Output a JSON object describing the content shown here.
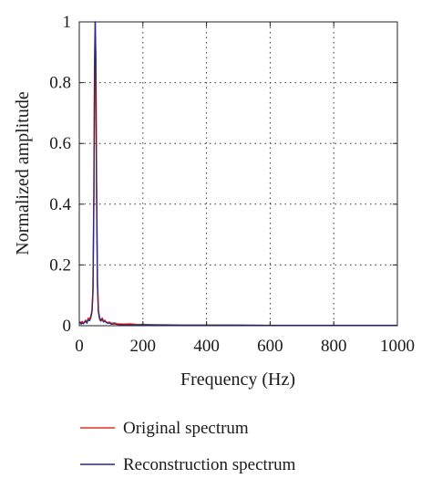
{
  "chart_data": {
    "type": "line",
    "xlabel": "Frequency (Hz)",
    "ylabel": "Normalized amplitude",
    "xlim": [
      0,
      1000
    ],
    "ylim": [
      0,
      1
    ],
    "x_ticks": [
      0,
      200,
      400,
      600,
      800,
      1000
    ],
    "y_ticks": [
      0,
      0.2,
      0.4,
      0.6,
      0.8,
      1
    ],
    "x_tick_labels": [
      "0",
      "200",
      "400",
      "600",
      "800",
      "1000"
    ],
    "y_tick_labels": [
      "0",
      "0.2",
      "0.4",
      "0.6",
      "0.8",
      "1"
    ],
    "grid": true,
    "legend_position": "bottom",
    "series": [
      {
        "name": "Original spectrum",
        "color": "#e0302a",
        "x": [
          0,
          3,
          6,
          9,
          12,
          16,
          20,
          24,
          28,
          32,
          36,
          40,
          43,
          46,
          48,
          50,
          52,
          54,
          57,
          60,
          64,
          68,
          72,
          76,
          80,
          85,
          90,
          95,
          100,
          110,
          120,
          140,
          160,
          180,
          200,
          240,
          280,
          320,
          400,
          500,
          600,
          700,
          800,
          900,
          1000
        ],
        "y": [
          0.01,
          0.012,
          0.006,
          0.014,
          0.008,
          0.012,
          0.018,
          0.01,
          0.025,
          0.02,
          0.03,
          0.05,
          0.12,
          0.45,
          0.85,
          1.0,
          0.88,
          0.5,
          0.15,
          0.05,
          0.025,
          0.018,
          0.025,
          0.015,
          0.018,
          0.012,
          0.01,
          0.012,
          0.008,
          0.009,
          0.006,
          0.005,
          0.006,
          0.004,
          0.004,
          0.003,
          0.003,
          0.002,
          0.002,
          0.002,
          0.001,
          0.001,
          0.001,
          0.001,
          0.001
        ]
      },
      {
        "name": "Reconstruction spectrum",
        "color": "#2a2a7a",
        "x": [
          0,
          3,
          6,
          9,
          12,
          16,
          20,
          24,
          28,
          32,
          36,
          40,
          43,
          46,
          48,
          50,
          52,
          54,
          57,
          60,
          64,
          68,
          72,
          76,
          80,
          85,
          90,
          95,
          100,
          110,
          120,
          140,
          160,
          180,
          200,
          240,
          280,
          320,
          400,
          500,
          600,
          700,
          800,
          900,
          1000
        ],
        "y": [
          0.008,
          0.01,
          0.005,
          0.012,
          0.006,
          0.01,
          0.015,
          0.008,
          0.02,
          0.016,
          0.025,
          0.045,
          0.11,
          0.44,
          0.84,
          1.0,
          0.87,
          0.48,
          0.14,
          0.045,
          0.02,
          0.015,
          0.022,
          0.012,
          0.015,
          0.01,
          0.008,
          0.009,
          0.005,
          0.006,
          0.004,
          0.003,
          0.003,
          0.002,
          0.002,
          0.002,
          0.001,
          0.001,
          0.001,
          0.001,
          0.001,
          0.001,
          0.001,
          0.001,
          0.001
        ]
      }
    ]
  }
}
